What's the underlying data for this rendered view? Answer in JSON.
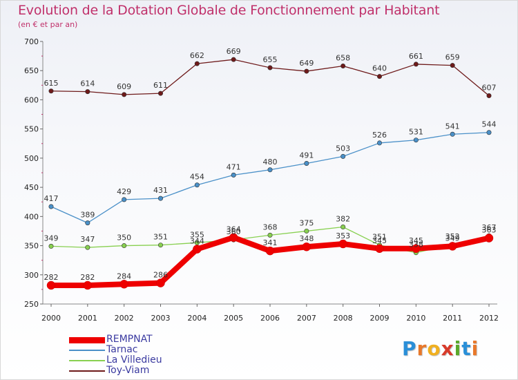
{
  "title": "Evolution de la Dotation Globale de Fonctionnement par Habitant",
  "subtitle": "(en € et par an)",
  "logo": {
    "letters": [
      "P",
      "r",
      "o",
      "x",
      "i",
      "t",
      "i"
    ],
    "colors": [
      "#2a8fd8",
      "#e8782a",
      "#f0b020",
      "#d83a2a",
      "#5aa82a",
      "#2a8fd8",
      "#e8782a"
    ]
  },
  "chart_data": {
    "type": "line",
    "x": [
      "2000",
      "2001",
      "2002",
      "2003",
      "2004",
      "2005",
      "2006",
      "2007",
      "2008",
      "2009",
      "2010",
      "2011",
      "2012"
    ],
    "ylim": [
      250,
      700
    ],
    "yticks": [
      "250",
      "300",
      "350",
      "400",
      "450",
      "500",
      "550",
      "600",
      "650",
      "700"
    ],
    "grid": false,
    "legend_position": "bottom-left",
    "series": [
      {
        "name": "REMPNAT",
        "color": "#ee0000",
        "values": [
          282,
          282,
          284,
          286,
          344,
          364,
          341,
          348,
          353,
          345,
          345,
          349,
          363
        ],
        "labels": [
          "282",
          "282",
          "284",
          "286",
          "344",
          "364",
          "341",
          "348",
          "353",
          "345",
          "345",
          "349",
          "363"
        ]
      },
      {
        "name": "Tarnac",
        "color": "#4a90c8",
        "values": [
          417,
          389,
          429,
          431,
          454,
          471,
          480,
          491,
          503,
          526,
          531,
          541,
          544
        ],
        "labels": [
          "417",
          "389",
          "429",
          "431",
          "454",
          "471",
          "480",
          "491",
          "503",
          "526",
          "531",
          "541",
          "544"
        ]
      },
      {
        "name": "La Villedieu",
        "color": "#88d050",
        "values": [
          349,
          347,
          350,
          351,
          355,
          360,
          368,
          375,
          382,
          351,
          338,
          352,
          367
        ],
        "labels": [
          "349",
          "347",
          "350",
          "351",
          "355",
          "360",
          "368",
          "375",
          "382",
          "351",
          "338",
          "352",
          "367"
        ]
      },
      {
        "name": "Toy-Viam",
        "color": "#6e1a1a",
        "values": [
          615,
          614,
          609,
          611,
          662,
          669,
          655,
          649,
          658,
          640,
          661,
          659,
          607
        ],
        "labels": [
          "615",
          "614",
          "609",
          "611",
          "662",
          "669",
          "655",
          "649",
          "658",
          "640",
          "661",
          "659",
          "607"
        ]
      }
    ]
  }
}
